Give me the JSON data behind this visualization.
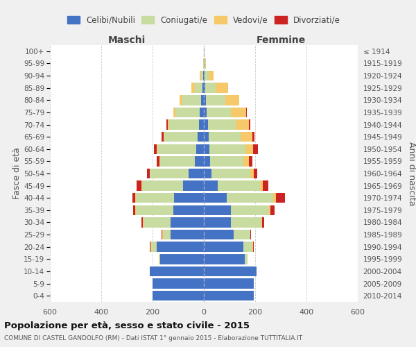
{
  "age_groups": [
    "0-4",
    "5-9",
    "10-14",
    "15-19",
    "20-24",
    "25-29",
    "30-34",
    "35-39",
    "40-44",
    "45-49",
    "50-54",
    "55-59",
    "60-64",
    "65-69",
    "70-74",
    "75-79",
    "80-84",
    "85-89",
    "90-94",
    "95-99",
    "100+"
  ],
  "birth_years": [
    "2010-2014",
    "2005-2009",
    "2000-2004",
    "1995-1999",
    "1990-1994",
    "1985-1989",
    "1980-1984",
    "1975-1979",
    "1970-1974",
    "1965-1969",
    "1960-1964",
    "1955-1959",
    "1950-1954",
    "1945-1949",
    "1940-1944",
    "1935-1939",
    "1930-1934",
    "1925-1929",
    "1920-1924",
    "1915-1919",
    "≤ 1914"
  ],
  "male": {
    "celibi": [
      200,
      200,
      210,
      170,
      185,
      130,
      130,
      120,
      115,
      80,
      60,
      35,
      30,
      25,
      20,
      15,
      10,
      5,
      3,
      1,
      1
    ],
    "coniugati": [
      0,
      0,
      0,
      5,
      20,
      30,
      105,
      145,
      150,
      160,
      150,
      135,
      150,
      130,
      115,
      95,
      75,
      30,
      8,
      2,
      0
    ],
    "vedovi": [
      0,
      0,
      0,
      0,
      3,
      2,
      2,
      2,
      2,
      2,
      2,
      2,
      3,
      3,
      5,
      8,
      10,
      15,
      5,
      0,
      0
    ],
    "divorziati": [
      0,
      0,
      0,
      0,
      2,
      2,
      5,
      10,
      12,
      20,
      10,
      12,
      12,
      8,
      5,
      0,
      0,
      0,
      0,
      0,
      0
    ]
  },
  "female": {
    "nubili": [
      195,
      195,
      205,
      160,
      155,
      115,
      105,
      105,
      90,
      55,
      30,
      25,
      22,
      18,
      15,
      10,
      8,
      5,
      3,
      1,
      1
    ],
    "coniugate": [
      0,
      0,
      0,
      10,
      35,
      65,
      120,
      150,
      180,
      165,
      150,
      130,
      140,
      125,
      110,
      95,
      75,
      40,
      15,
      4,
      1
    ],
    "vedove": [
      0,
      0,
      0,
      0,
      2,
      2,
      2,
      5,
      10,
      10,
      15,
      20,
      30,
      45,
      50,
      60,
      55,
      50,
      20,
      3,
      0
    ],
    "divorziate": [
      0,
      0,
      0,
      0,
      2,
      2,
      8,
      15,
      35,
      20,
      12,
      15,
      18,
      10,
      5,
      3,
      0,
      0,
      0,
      0,
      0
    ]
  },
  "color_celibi": "#4472c4",
  "color_coniugati": "#c8dba0",
  "color_vedovi": "#f5c96a",
  "color_divorziati": "#cc2222",
  "xlim": 600,
  "title": "Popolazione per età, sesso e stato civile - 2015",
  "subtitle": "COMUNE DI CASTEL GANDOLFO (RM) - Dati ISTAT 1° gennaio 2015 - Elaborazione TUTTITALIA.IT",
  "ylabel_left": "Fasce di età",
  "ylabel_right": "Anni di nascita",
  "xlabel_left": "Maschi",
  "xlabel_right": "Femmine",
  "bg_color": "#f0f0f0"
}
